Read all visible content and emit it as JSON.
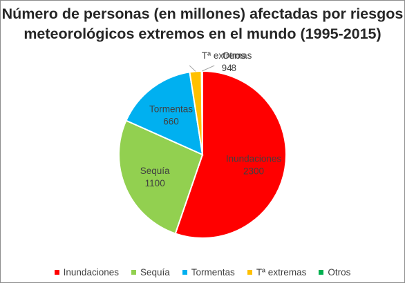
{
  "chart_data": {
    "type": "pie",
    "title_line1": "Número de personas (en millones) afectadas por riesgos",
    "title_line2": "meteorológicos extremos en el mundo (1995-2015)",
    "slices": [
      {
        "name": "Inundaciones",
        "label": "Inundaciones",
        "value_label": "2300",
        "value": 2300,
        "color": "#ff0000"
      },
      {
        "name": "Sequía",
        "label": "Sequía",
        "value_label": "1100",
        "value": 1100,
        "color": "#92d050"
      },
      {
        "name": "Tormentas",
        "label": "Tormentas",
        "value_label": "660",
        "value": 660,
        "color": "#00b0f0"
      },
      {
        "name": "Tª extremas",
        "label": "Tª extremas",
        "value_label": "94",
        "value": 94,
        "color": "#ffc000"
      },
      {
        "name": "Otros",
        "label": "Otros",
        "value_label": "8",
        "value": 8,
        "color": "#00b050"
      }
    ],
    "legend_position": "bottom"
  }
}
